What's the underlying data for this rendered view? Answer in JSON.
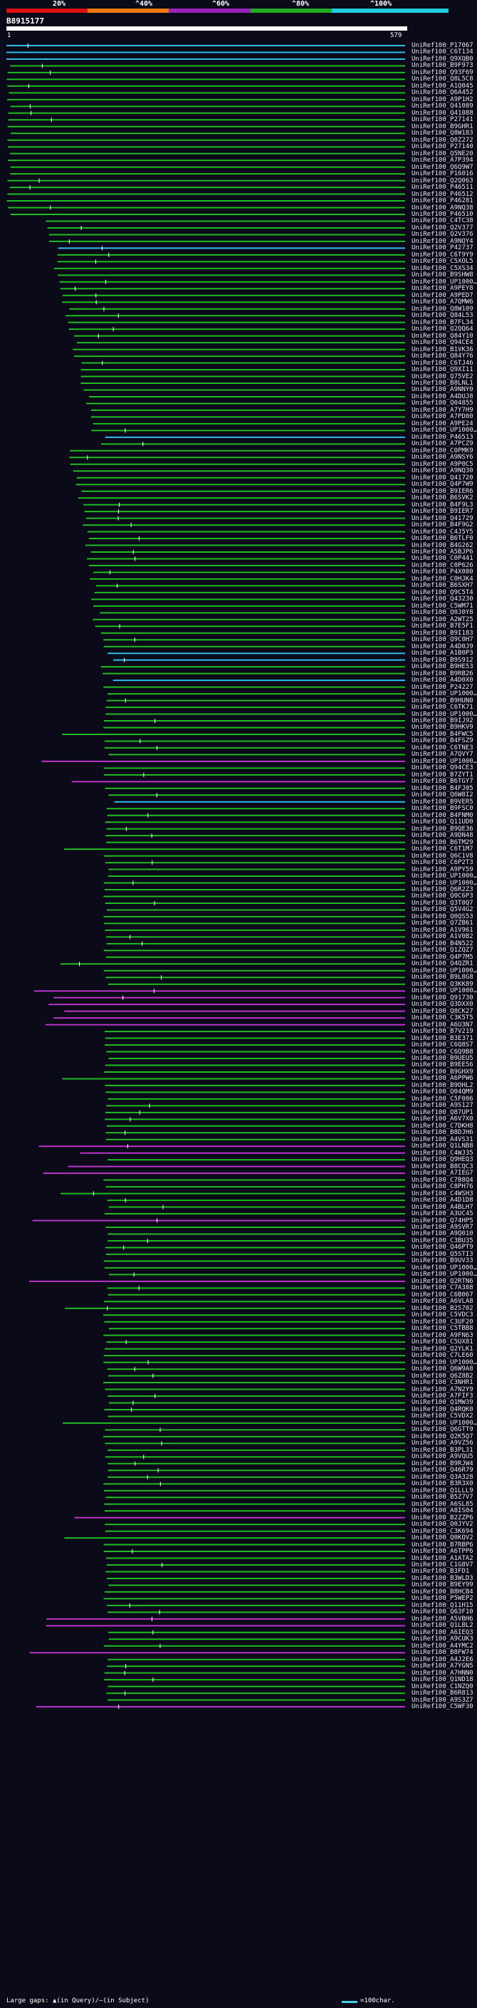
{
  "header": {
    "pct_labels": [
      "20%",
      "^40%",
      "^60%",
      "^80%",
      "^100%"
    ],
    "colorbar_colors": [
      "#dd1111",
      "#ee7711",
      "#9922bb",
      "#22aa22",
      "#22ccdd"
    ],
    "query_name": "B8915177",
    "start": "1",
    "end": "579"
  },
  "footer": {
    "text": "Large gaps: ▲(in Query)/—(in Subject)",
    "legend_label": "=100char."
  },
  "colors": {
    "cyan": "#33bbee",
    "green": "#22bb22",
    "magenta": "#bb33cc",
    "background": "#0a0a18"
  },
  "hits": [
    "UniRef100_P17067",
    "UniRef100_C6T134",
    "UniRef100_Q9XQB0",
    "UniRef100_B9F973",
    "UniRef100_Q93F69",
    "UniRef100_Q8L5C8",
    "UniRef100_A1Q045",
    "UniRef100_Q6A452",
    "UniRef100_A9P1H2",
    "UniRef100_Q41089",
    "UniRef100_Q41088",
    "UniRef100_P27141",
    "UniRef100_B9GHR1",
    "UniRef100_Q8W183",
    "UniRef100_Q0Z272",
    "UniRef100_P27140",
    "UniRef100_Q5NE20",
    "UniRef100_A7P394",
    "UniRef100_Q6Q9W7",
    "UniRef100_P16016",
    "UniRef100_Q2Q063",
    "UniRef100_P46511",
    "UniRef100_P46512",
    "UniRef100_P46281",
    "UniRef100_A9NQ38",
    "UniRef100_P46510",
    "UniRef100_C4TC38",
    "UniRef100_Q2V377",
    "UniRef100_Q2V376",
    "UniRef100_A9NQY4",
    "UniRef100_P42737",
    "UniRef100_C6T9Y9",
    "UniRef100_C5XOL5",
    "UniRef100_C5XS34",
    "UniRef100_B9SHW8",
    "UniRef100_UP1000…",
    "UniRef100_A9PEY8",
    "UniRef100_A9PED7",
    "UniRef100_A7QMW6",
    "UniRef100_Q8W109",
    "UniRef100_Q84L53",
    "UniRef100_B7FL34",
    "UniRef100_Q2QQ64",
    "UniRef100_Q84Y10",
    "UniRef100_Q94CE4",
    "UniRef100_B1VK36",
    "UniRef100_Q84Y76",
    "UniRef100_C6TJ46",
    "UniRef100_Q9XI11",
    "UniRef100_Q75VE2",
    "UniRef100_B8LNL1",
    "UniRef100_A9NNY0",
    "UniRef100_A4DUJ8",
    "UniRef100_Q04855",
    "UniRef100_A7Y7H9",
    "UniRef100_A7PD00",
    "UniRef100_A9PE24",
    "UniRef100_UP1000…",
    "UniRef100_P46513",
    "UniRef100_A7PCZ9",
    "UniRef100_C0PMK9",
    "UniRef100_A9NSY6",
    "UniRef100_A9P0C5",
    "UniRef100_A9NQ30",
    "UniRef100_Q41720",
    "UniRef100_Q4P7W9",
    "UniRef100_B9IER6",
    "UniRef100_B6SVK2",
    "UniRef100_B4F9L3",
    "UniRef100_B9IER7",
    "UniRef100_Q41729",
    "UniRef100_B4F9G2",
    "UniRef100_C4J5Y5",
    "UniRef100_B6TLF0",
    "UniRef100_B4G262",
    "UniRef100_A5BJP6",
    "UniRef100_C0P441",
    "UniRef100_C0P626",
    "UniRef100_P4X080",
    "UniRef100_C0HJK4",
    "UniRef100_B6SXH7",
    "UniRef100_Q9C5T4",
    "UniRef100_Q43230",
    "UniRef100_C5WM71",
    "UniRef100_Q0J0Y8",
    "UniRef100_A2WT25",
    "UniRef100_B7E5F1",
    "UniRef100_B9I183",
    "UniRef100_Q9C0H7",
    "UniRef100_A4D0J9",
    "UniRef100_A1B0P3",
    "UniRef100_B9S912",
    "UniRef100_B9HE53",
    "UniRef100_B9RB26",
    "UniRef100_A4D0X0",
    "UniRef100_P24227",
    "UniRef100_UP1000…",
    "UniRef100_B9HUN0",
    "UniRef100_C6TK71",
    "UniRef100_UP1000…",
    "UniRef100_B9IJ92",
    "UniRef100_B9HKV9",
    "UniRef100_B4FWC5",
    "UniRef100_B4FSZ9",
    "UniRef100_C6TNE3",
    "UniRef100_A7QVY7",
    "UniRef100_UP1000…",
    "UniRef100_Q94CE3",
    "UniRef100_B7ZYT1",
    "UniRef100_B6TGY7",
    "UniRef100_B4FJ05",
    "UniRef100_Q6W8I2",
    "UniRef100_B9VER5",
    "UniRef100_B9FSC0",
    "UniRef100_B4FNM0",
    "UniRef100_Q11UD0",
    "UniRef100_B9QE36",
    "UniRef100_A9DN48",
    "UniRef100_B6TM29",
    "UniRef100_C6T1M7",
    "UniRef100_Q6C1V8",
    "UniRef100_C6P2T3",
    "UniRef100_A9PY59",
    "UniRef100_UP1000…",
    "UniRef100_UP1000…",
    "UniRef100_Q6R2Z3",
    "UniRef100_Q0C6P3",
    "UniRef100_Q3T0Q7",
    "UniRef100_Q5V4G2",
    "UniRef100_Q0QS53",
    "UniRef100_Q7ZB61",
    "UniRef100_A1V961",
    "UniRef100_A1V0B2",
    "UniRef100_B4N522",
    "UniRef100_Q1ZQZ7",
    "UniRef100_Q4P7M5",
    "UniRef100_Q4QZR1",
    "UniRef100_UP1000…",
    "UniRef100_B9L8G8",
    "UniRef100_Q3KK89",
    "UniRef100_UP1000…",
    "UniRef100_Q91730",
    "UniRef100_Q3DXX0",
    "UniRef100_Q8CK27",
    "UniRef100_C3K5T5",
    "UniRef100_A6U3N7",
    "UniRef100_B7V219",
    "UniRef100_B3E371",
    "UniRef100_C6Q8S7",
    "UniRef100_C6Q9B8",
    "UniRef100_B9UEU5",
    "UniRef100_B9EE56",
    "UniRef100_B9GHX9",
    "UniRef100_A6PPW6",
    "UniRef100_B9OHL2",
    "UniRef100_Q04QM9",
    "UniRef100_C5F006",
    "UniRef100_A9S127",
    "UniRef100_Q87UP1",
    "UniRef100_A6V7X0",
    "UniRef100_C7DKH8",
    "UniRef100_B8DJH6",
    "UniRef100_A4VS31",
    "UniRef100_Q1LNB8",
    "UniRef100_C4WJ35",
    "UniRef100_Q9HEQ3",
    "UniRef100_B8CQC3",
    "UniRef100_A7IEG7",
    "UniRef100_C7B8Q4",
    "UniRef100_C8PH76",
    "UniRef100_C4WSH3",
    "UniRef100_A4D1D8",
    "UniRef100_A4BLH7",
    "UniRef100_A3UC45",
    "UniRef100_Q74HP5",
    "UniRef100_A9SVR7",
    "UniRef100_A9Q010",
    "UniRef100_C3BU35",
    "UniRef100_Q46PT9",
    "UniRef100_Q5STI3",
    "UniRef100_B9UV33",
    "UniRef100_UP1000…",
    "UniRef100_UP1000…",
    "UniRef100_Q2RTN6",
    "UniRef100_C7A388",
    "UniRef100_C6B067",
    "UniRef100_A6VLA8",
    "UniRef100_B2S702",
    "UniRef100_C5VDC3",
    "UniRef100_C3UF20",
    "UniRef100_C5TBB8",
    "UniRef100_A9FN63",
    "UniRef100_C5UX81",
    "UniRef100_Q2YLK1",
    "UniRef100_C7LE60",
    "UniRef100_UP1000…",
    "UniRef100_Q6W9A8",
    "UniRef100_Q6Z8B2",
    "UniRef100_C3NHR1",
    "UniRef100_A7N2Y9",
    "UniRef100_A7FIF3",
    "UniRef100_Q1MW39",
    "UniRef100_Q4RQK0",
    "UniRef100_C5VDX2",
    "UniRef100_UP1000…",
    "UniRef100_Q6GTT9",
    "UniRef100_Q2K5Q7",
    "UniRef100_A9VZ56",
    "UniRef100_B3PL31",
    "UniRef100_A9VQU5",
    "UniRef100_B9RJW4",
    "UniRef100_Q46R79",
    "UniRef100_Q3A328",
    "UniRef100_B3R3X0",
    "UniRef100_Q1LLL9",
    "UniRef100_B5Z7V7",
    "UniRef100_A6SL85",
    "UniRef100_A8IS04",
    "UniRef100_B2ZZP6",
    "UniRef100_Q0JYV2",
    "UniRef100_C3K694",
    "UniRef100_Q0KQV2",
    "UniRef100_B7RBP6",
    "UniRef100_A6TPP6",
    "UniRef100_A1ATA2",
    "UniRef100_C1G8V7",
    "UniRef100_B3FD1",
    "UniRef100_B3WLD3",
    "UniRef100_B9EY99",
    "UniRef100_B8HCB4",
    "UniRef100_P5WEP2",
    "UniRef100_Q11H15",
    "UniRef100_Q63F10",
    "UniRef100_A5VBH6",
    "UniRef100_Q1LBL2",
    "UniRef100_A6IEQ3",
    "UniRef100_A9CUK3",
    "UniRef100_A4YMC2",
    "UniRef100_B8FW74",
    "UniRef100_A4J2E6",
    "UniRef100_A7YGN5",
    "UniRef100_A7HNN0",
    "UniRef100_Q1ND18",
    "UniRef100_C1NZQ0",
    "UniRef100_B6R813",
    "UniRef100_A9S3Z7",
    "UniRef100_C5WF30"
  ]
}
